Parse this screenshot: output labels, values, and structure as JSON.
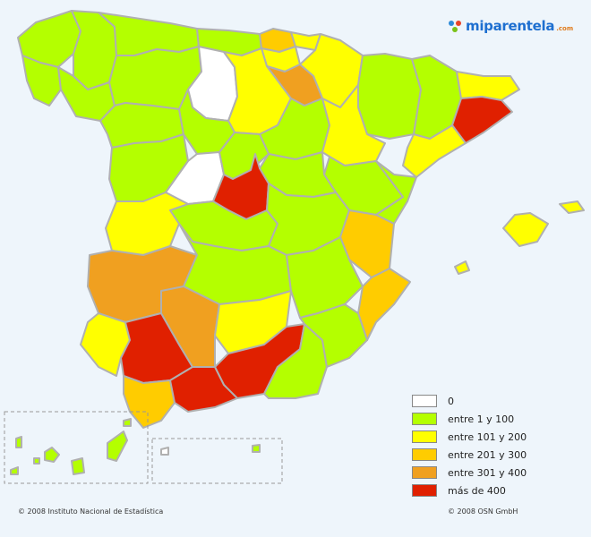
{
  "logo": {
    "text": "miparentela",
    "tld": ".com"
  },
  "colors": {
    "zero": "#ffffff",
    "r1_100": "#b4ff00",
    "r101_200": "#ffff00",
    "r201_300": "#ffcc00",
    "r301_400": "#f0a020",
    "over400": "#e02000",
    "border": "#b0b0b0"
  },
  "legend": [
    {
      "label": "0",
      "color": "#ffffff"
    },
    {
      "label": "entre 1 y 100",
      "color": "#b4ff00"
    },
    {
      "label": "entre 101 y 200",
      "color": "#ffff00"
    },
    {
      "label": "entre 201 y 300",
      "color": "#ffcc00"
    },
    {
      "label": "entre 301 y 400",
      "color": "#f0a020"
    },
    {
      "label": "más de 400",
      "color": "#e02000"
    }
  ],
  "footer": {
    "left": "© 2008 Instituto Nacional de Estadística",
    "right": "© 2008 OSN GmbH"
  }
}
